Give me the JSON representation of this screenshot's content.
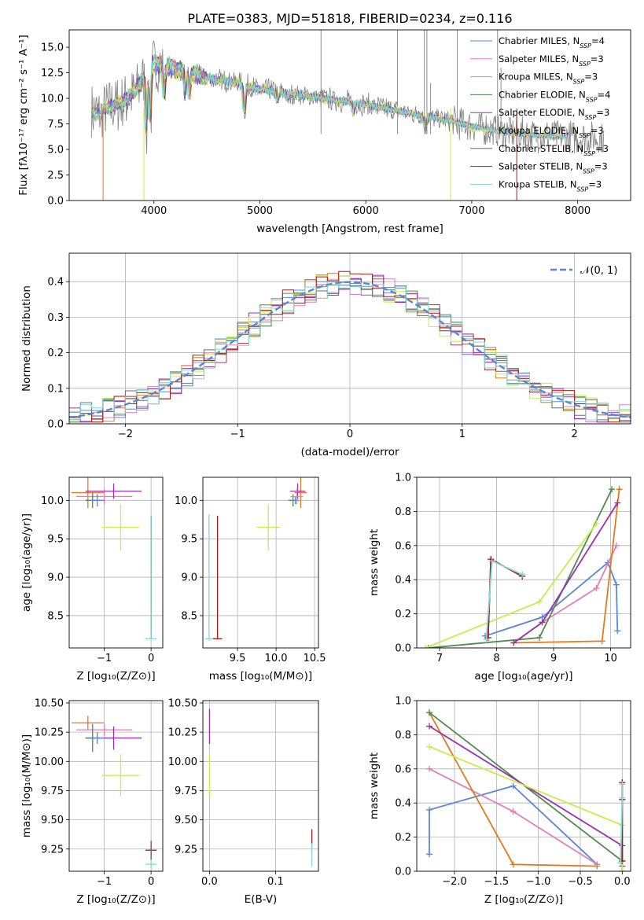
{
  "title": "PLATE=0383, MJD=51818, FIBERID=0234, z=0.116",
  "colors": {
    "chabrier_miles": "#5b86d6",
    "salpeter_miles": "#e27fb8",
    "kroupa_miles": "#d6a020",
    "chabrier_elodie": "#4f8a4f",
    "salpeter_elodie": "#9b2fb3",
    "kroupa_elodie": "#c8ec4a",
    "chabrier_stelib": "#6a6a6a",
    "salpeter_stelib": "#b01515",
    "kroupa_stelib": "#7fd8d8",
    "orange_fit": "#e07a1f",
    "normal_curve": "#5b86d6",
    "grid": "#b0b0b0",
    "data": "#808080"
  },
  "chart_data": [
    {
      "id": "spectrum",
      "type": "line",
      "title": "PLATE=0383, MJD=51818, FIBERID=0234, z=0.116",
      "xlabel": "wavelength [Angstrom, rest frame]",
      "ylabel": "Flux [fλ10⁻¹⁷ erg cm⁻² s⁻¹ A⁻¹]",
      "xlim": [
        3200,
        8500
      ],
      "ylim": [
        0,
        16.7
      ],
      "xticks": [
        4000,
        5000,
        6000,
        7000,
        8000
      ],
      "yticks": [
        0.0,
        2.5,
        5.0,
        7.5,
        10.0,
        12.5,
        15.0
      ],
      "ytick_labels": [
        "0.0",
        "2.5",
        "5.0",
        "7.5",
        "10.0",
        "12.5",
        "15.0"
      ],
      "legend": "top-right",
      "legend_entries": [
        {
          "key": "chabrier_miles",
          "label": "Chabrier MILES, N",
          "sub": "SSP",
          "suffix": "=4"
        },
        {
          "key": "salpeter_miles",
          "label": "Salpeter MILES, N",
          "sub": "SSP",
          "suffix": "=3"
        },
        {
          "key": "kroupa_miles",
          "label": "Kroupa MILES, N",
          "sub": "SSP",
          "suffix": "=3"
        },
        {
          "key": "chabrier_elodie",
          "label": "Chabrier ELODIE, N",
          "sub": "SSP",
          "suffix": "=4"
        },
        {
          "key": "salpeter_elodie",
          "label": "Salpeter ELODIE, N",
          "sub": "SSP",
          "suffix": "=3"
        },
        {
          "key": "kroupa_elodie",
          "label": "Kroupa ELODIE, N",
          "sub": "SSP",
          "suffix": "=3"
        },
        {
          "key": "chabrier_stelib",
          "label": "Chabrier STELIB, N",
          "sub": "SSP",
          "suffix": "=3"
        },
        {
          "key": "salpeter_stelib",
          "label": "Salpeter STELIB, N",
          "sub": "SSP",
          "suffix": "=3"
        },
        {
          "key": "kroupa_stelib",
          "label": "Kroupa STELIB, N",
          "sub": "SSP",
          "suffix": "=3"
        }
      ],
      "continuum": {
        "x": [
          3400,
          3500,
          3600,
          3700,
          3800,
          3900,
          4000,
          4100,
          4200,
          4300,
          4400,
          4500,
          4600,
          4700,
          4800,
          4900,
          5000,
          5200,
          5400,
          5600,
          5800,
          6000,
          6200,
          6400,
          6600,
          6800,
          7000,
          7200,
          7400,
          7600,
          7800,
          8000,
          8200
        ],
        "y": [
          9.3,
          8.8,
          9.2,
          9.6,
          10.4,
          11.8,
          13.4,
          13.1,
          12.9,
          12.6,
          12.3,
          12.0,
          11.8,
          11.7,
          11.5,
          11.1,
          10.9,
          10.6,
          10.3,
          10.0,
          9.7,
          9.4,
          9.0,
          8.6,
          8.2,
          7.8,
          7.3,
          6.9,
          6.6,
          6.4,
          6.3,
          6.2,
          6.1
        ]
      }
    },
    {
      "id": "residuals",
      "type": "line",
      "xlabel": "(data-model)/error",
      "ylabel": "Normed distribution",
      "xlim": [
        -2.5,
        2.5
      ],
      "ylim": [
        0,
        0.48
      ],
      "xticks": [
        -2,
        -1,
        0,
        1,
        2
      ],
      "xtick_labels": [
        "−2",
        "−1",
        "0",
        "1",
        "2"
      ],
      "yticks": [
        0.0,
        0.1,
        0.2,
        0.3,
        0.4
      ],
      "ytick_labels": [
        "0.0",
        "0.1",
        "0.2",
        "0.3",
        "0.4"
      ],
      "grid": true,
      "legend": "top-right",
      "normal_label": "𝒩(0, 1)",
      "normal": {
        "mu": 0,
        "sigma": 1
      }
    },
    {
      "id": "age-vs-Z",
      "type": "scatter",
      "xlabel": "Z [log₁₀(Z/Z⊙)]",
      "ylabel": "age  [log₁₀(age/yr)]",
      "xlim": [
        -1.75,
        0.25
      ],
      "ylim": [
        8.08,
        10.3
      ],
      "xticks": [
        -1,
        0
      ],
      "xtick_labels": [
        "−1",
        "0"
      ],
      "yticks": [
        8.5,
        9.0,
        9.5,
        10.0
      ],
      "ytick_labels": [
        "8.5",
        "9.0",
        "9.5",
        "10.0"
      ],
      "grid": true,
      "points": [
        {
          "c": "orange_fit",
          "x": -1.35,
          "y": 10.1,
          "xe": 0.35,
          "ye": 0.2
        },
        {
          "c": "salpeter_miles",
          "x": -1.0,
          "y": 10.05,
          "xe": 0.6,
          "ye": 0.1
        },
        {
          "c": "salpeter_elodie",
          "x": -0.8,
          "y": 10.12,
          "xe": 0.6,
          "ye": 0.1
        },
        {
          "c": "chabrier_elodie",
          "x": -1.25,
          "y": 10.0,
          "xe": 0.15,
          "ye": 0.1
        },
        {
          "c": "chabrier_miles",
          "x": -1.15,
          "y": 10.0,
          "xe": 0.15,
          "ye": 0.08
        },
        {
          "c": "kroupa_elodie",
          "x": -0.65,
          "y": 9.65,
          "xe": 0.4,
          "ye": 0.3
        },
        {
          "c": "salpeter_stelib",
          "x": 0.0,
          "y": 9.0,
          "xe": 0.0,
          "ye": 0.8
        },
        {
          "c": "chabrier_stelib",
          "x": 0.0,
          "y": 9.0,
          "xe": 0.0,
          "ye": 0.8
        },
        {
          "c": "kroupa_stelib",
          "x": 0.0,
          "y": 9.0,
          "xe": 0.0,
          "ye": 0.8
        },
        {
          "c": "kroupa_stelib",
          "x": 0.0,
          "y": 8.2,
          "xe": 0.12,
          "ye": 0.0
        }
      ]
    },
    {
      "id": "age-vs-mass",
      "type": "scatter",
      "xlabel": "mass [log₁₀(M/M⊙)]",
      "ylabel": "",
      "xlim": [
        9.05,
        10.55
      ],
      "ylim": [
        8.08,
        10.3
      ],
      "xticks": [
        9.5,
        10.0,
        10.5
      ],
      "xtick_labels": [
        "9.5",
        "10.0",
        "10.5"
      ],
      "yticks": [
        8.5,
        9.0,
        9.5,
        10.0
      ],
      "ytick_labels": [
        "8.5",
        "9.0",
        "9.5",
        "10.0"
      ],
      "grid": true,
      "points": [
        {
          "c": "orange_fit",
          "x": 10.32,
          "y": 10.1,
          "xe": 0.08,
          "ye": 0.2
        },
        {
          "c": "salpeter_elodie",
          "x": 10.28,
          "y": 10.12,
          "xe": 0.1,
          "ye": 0.1
        },
        {
          "c": "chabrier_elodie",
          "x": 10.22,
          "y": 10.0,
          "xe": 0.06,
          "ye": 0.08
        },
        {
          "c": "chabrier_miles",
          "x": 10.25,
          "y": 10.0,
          "xe": 0.05,
          "ye": 0.05
        },
        {
          "c": "salpeter_miles",
          "x": 10.27,
          "y": 10.05,
          "xe": 0.08,
          "ye": 0.1
        },
        {
          "c": "kroupa_elodie",
          "x": 9.9,
          "y": 9.65,
          "xe": 0.15,
          "ye": 0.3
        },
        {
          "c": "salpeter_stelib",
          "x": 9.24,
          "y": 9.0,
          "xe": 0.0,
          "ye": 0.8
        },
        {
          "c": "salpeter_stelib",
          "x": 9.24,
          "y": 8.2,
          "xe": 0.06,
          "ye": 0.0
        },
        {
          "c": "kroupa_stelib",
          "x": 9.13,
          "y": 9.0,
          "xe": 0.0,
          "ye": 0.82
        },
        {
          "c": "kroupa_stelib",
          "x": 9.13,
          "y": 8.2,
          "xe": 0.05,
          "ye": 0.0
        }
      ]
    },
    {
      "id": "massweight-vs-age",
      "type": "line",
      "xlabel": "age  [log₁₀(age/yr)]",
      "ylabel": "mass weight",
      "xlim": [
        6.6,
        10.35
      ],
      "ylim": [
        0,
        1.0
      ],
      "xticks": [
        7,
        8,
        9,
        10
      ],
      "xtick_labels": [
        "7",
        "8",
        "9",
        "10"
      ],
      "yticks": [
        0.0,
        0.2,
        0.4,
        0.6,
        0.8,
        1.0
      ],
      "ytick_labels": [
        "0.0",
        "0.2",
        "0.4",
        "0.6",
        "0.8",
        "1.0"
      ],
      "grid": true,
      "series": [
        {
          "c": "chabrier_miles",
          "x": [
            7.8,
            8.8,
            9.95,
            10.1,
            10.12
          ],
          "y": [
            0.07,
            0.18,
            0.5,
            0.37,
            0.1
          ]
        },
        {
          "c": "salpeter_miles",
          "x": [
            8.3,
            8.8,
            9.75,
            10.1
          ],
          "y": [
            0.03,
            0.15,
            0.35,
            0.6
          ]
        },
        {
          "c": "orange_fit",
          "x": [
            8.3,
            9.85,
            10.15,
            10.15
          ],
          "y": [
            0.03,
            0.04,
            0.93,
            0.93
          ]
        },
        {
          "c": "chabrier_elodie",
          "x": [
            6.8,
            8.75,
            10.02
          ],
          "y": [
            0.0,
            0.06,
            0.93
          ]
        },
        {
          "c": "salpeter_elodie",
          "x": [
            8.3,
            8.8,
            10.12
          ],
          "y": [
            0.03,
            0.15,
            0.85
          ]
        },
        {
          "c": "kroupa_elodie",
          "x": [
            6.75,
            8.75,
            9.75
          ],
          "y": [
            0.0,
            0.27,
            0.73
          ]
        },
        {
          "c": "chabrier_stelib",
          "x": [
            7.85,
            7.9,
            8.45
          ],
          "y": [
            0.06,
            0.52,
            0.42
          ]
        },
        {
          "c": "salpeter_stelib",
          "x": [
            7.85,
            7.9,
            8.45
          ],
          "y": [
            0.06,
            0.52,
            0.42
          ]
        },
        {
          "c": "kroupa_stelib",
          "x": [
            7.82,
            7.92,
            8.45
          ],
          "y": [
            0.05,
            0.51,
            0.43
          ]
        }
      ]
    },
    {
      "id": "mass-vs-Z",
      "type": "scatter",
      "xlabel": "Z [log₁₀(Z/Z⊙)]",
      "ylabel": "mass [log₁₀(M/M⊙)]",
      "xlim": [
        -1.75,
        0.25
      ],
      "ylim": [
        9.06,
        10.52
      ],
      "xticks": [
        -1,
        0
      ],
      "xtick_labels": [
        "−1",
        "0"
      ],
      "yticks": [
        9.25,
        9.5,
        9.75,
        10.0,
        10.25,
        10.5
      ],
      "ytick_labels": [
        "9.25",
        "9.50",
        "9.75",
        "10.00",
        "10.25",
        "10.50"
      ],
      "grid": true,
      "points": [
        {
          "c": "orange_fit",
          "x": -1.35,
          "y": 10.33,
          "xe": 0.35,
          "ye": 0.06
        },
        {
          "c": "salpeter_miles",
          "x": -1.0,
          "y": 10.27,
          "xe": 0.6,
          "ye": 0.05
        },
        {
          "c": "salpeter_elodie",
          "x": -0.8,
          "y": 10.2,
          "xe": 0.6,
          "ye": 0.1
        },
        {
          "c": "chabrier_elodie",
          "x": -1.25,
          "y": 10.2,
          "xe": 0.15,
          "ye": 0.12
        },
        {
          "c": "chabrier_miles",
          "x": -1.15,
          "y": 10.2,
          "xe": 0.15,
          "ye": 0.05
        },
        {
          "c": "kroupa_elodie",
          "x": -0.65,
          "y": 9.88,
          "xe": 0.4,
          "ye": 0.18
        },
        {
          "c": "salpeter_stelib",
          "x": 0.0,
          "y": 9.24,
          "xe": 0.12,
          "ye": 0.08
        },
        {
          "c": "chabrier_stelib",
          "x": 0.0,
          "y": 9.24,
          "xe": 0.0,
          "ye": 0.08
        },
        {
          "c": "kroupa_stelib",
          "x": 0.0,
          "y": 9.12,
          "xe": 0.12,
          "ye": 0.04
        }
      ]
    },
    {
      "id": "mass-vs-EBV",
      "type": "scatter",
      "xlabel": "E(B-V)",
      "ylabel": "",
      "xlim": [
        -0.01,
        0.165
      ],
      "ylim": [
        9.06,
        10.52
      ],
      "xticks": [
        0.0,
        0.1
      ],
      "xtick_labels": [
        "0.0",
        "0.1"
      ],
      "yticks": [
        9.25,
        9.5,
        9.75,
        10.0,
        10.25,
        10.5
      ],
      "ytick_labels": [
        "9.25",
        "9.50",
        "9.75",
        "10.00",
        "10.25",
        "10.50"
      ],
      "grid": true,
      "points": [
        {
          "c": "salpeter_elodie",
          "x": 0.0,
          "y": 10.3,
          "xe": 0.0,
          "ye": 0.15
        },
        {
          "c": "kroupa_elodie",
          "x": 0.0,
          "y": 9.88,
          "xe": 0.0,
          "ye": 0.18
        },
        {
          "c": "salpeter_stelib",
          "x": 0.155,
          "y": 9.34,
          "xe": 0.0,
          "ye": 0.08
        },
        {
          "c": "kroupa_stelib",
          "x": 0.155,
          "y": 9.2,
          "xe": 0.0,
          "ye": 0.1
        }
      ]
    },
    {
      "id": "massweight-vs-Z",
      "type": "line",
      "xlabel": "Z [log₁₀(Z/Z⊙)]",
      "ylabel": "mass weight",
      "xlim": [
        -2.45,
        0.1
      ],
      "ylim": [
        0,
        1.0
      ],
      "xticks": [
        -2.0,
        -1.5,
        -1.0,
        -0.5,
        0.0
      ],
      "xtick_labels": [
        "−2.0",
        "−1.5",
        "−1.0",
        "−0.5",
        "0.0"
      ],
      "yticks": [
        0.0,
        0.2,
        0.4,
        0.6,
        0.8,
        1.0
      ],
      "ytick_labels": [
        "0.0",
        "0.2",
        "0.4",
        "0.6",
        "0.8",
        "1.0"
      ],
      "grid": true,
      "series": [
        {
          "c": "chabrier_miles",
          "x": [
            -2.3,
            -2.3,
            -1.3,
            -0.3
          ],
          "y": [
            0.1,
            0.36,
            0.5,
            0.04
          ]
        },
        {
          "c": "salpeter_miles",
          "x": [
            -2.3,
            -1.3,
            -0.3
          ],
          "y": [
            0.6,
            0.35,
            0.04
          ]
        },
        {
          "c": "orange_fit",
          "x": [
            -2.3,
            -1.3,
            -0.3
          ],
          "y": [
            0.93,
            0.04,
            0.03
          ]
        },
        {
          "c": "chabrier_elodie",
          "x": [
            -2.3,
            0.0,
            0.0
          ],
          "y": [
            0.93,
            0.06,
            0.0
          ]
        },
        {
          "c": "salpeter_elodie",
          "x": [
            -2.3,
            0.0,
            0.0
          ],
          "y": [
            0.85,
            0.15,
            0.03
          ]
        },
        {
          "c": "kroupa_elodie",
          "x": [
            -2.3,
            0.0,
            0.0
          ],
          "y": [
            0.73,
            0.27,
            0.0
          ]
        },
        {
          "c": "chabrier_stelib",
          "x": [
            0.0,
            0.0,
            0.0
          ],
          "y": [
            0.06,
            0.42,
            0.52
          ]
        },
        {
          "c": "salpeter_stelib",
          "x": [
            0.0,
            0.0,
            0.0
          ],
          "y": [
            0.06,
            0.42,
            0.52
          ]
        },
        {
          "c": "kroupa_stelib",
          "x": [
            -0.02,
            0.0,
            0.0
          ],
          "y": [
            0.05,
            0.43,
            0.51
          ]
        }
      ]
    }
  ]
}
